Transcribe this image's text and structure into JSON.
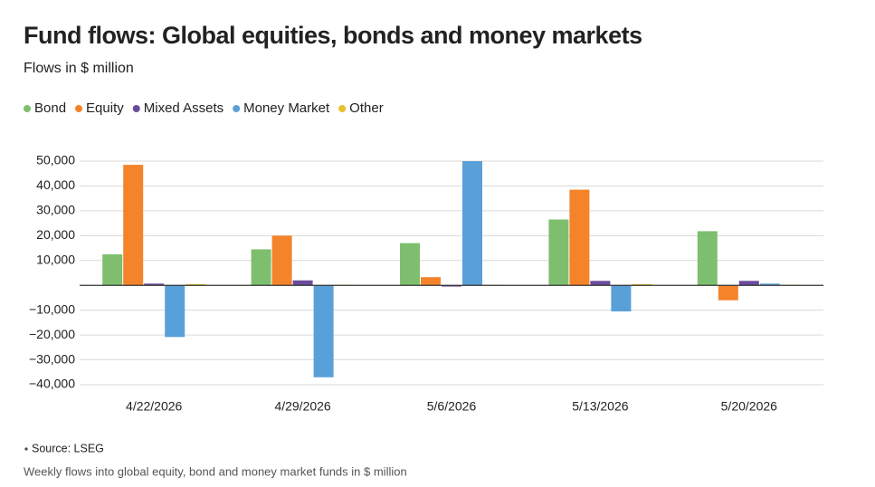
{
  "chart_data": {
    "type": "bar",
    "title": "Fund flows: Global equities, bonds and money markets",
    "subtitle": "Flows in $ million",
    "categories": [
      "4/22/2026",
      "4/29/2026",
      "5/6/2026",
      "5/13/2026",
      "5/20/2026"
    ],
    "series": [
      {
        "name": "Bond",
        "color": "#7dbf6e",
        "values": [
          12500,
          14500,
          17000,
          26500,
          21800
        ]
      },
      {
        "name": "Equity",
        "color": "#f5832a",
        "values": [
          48500,
          20000,
          3300,
          38500,
          -6000
        ]
      },
      {
        "name": "Mixed Assets",
        "color": "#6a4c9c",
        "values": [
          700,
          2000,
          -500,
          1800,
          1800
        ]
      },
      {
        "name": "Money Market",
        "color": "#5aa0d8",
        "values": [
          -20800,
          -37000,
          50000,
          -10500,
          700
        ]
      },
      {
        "name": "Other",
        "color": "#e8c130",
        "values": [
          500,
          200,
          200,
          500,
          200
        ]
      }
    ],
    "ylim": [
      -40000,
      50000
    ],
    "yticks": [
      {
        "value": -40000,
        "label": "−40,000"
      },
      {
        "value": -30000,
        "label": "−30,000"
      },
      {
        "value": -20000,
        "label": "−20,000"
      },
      {
        "value": -10000,
        "label": "−10,000"
      },
      {
        "value": 10000,
        "label": "10,000"
      },
      {
        "value": 20000,
        "label": "20,000"
      },
      {
        "value": 30000,
        "label": "30,000"
      },
      {
        "value": 40000,
        "label": "40,000"
      },
      {
        "value": 50000,
        "label": "50,000"
      }
    ],
    "grid": true,
    "legend": "top-left",
    "source": "Source: LSEG",
    "footnote": "Weekly flows into global equity, bond and money market funds in $ million"
  }
}
